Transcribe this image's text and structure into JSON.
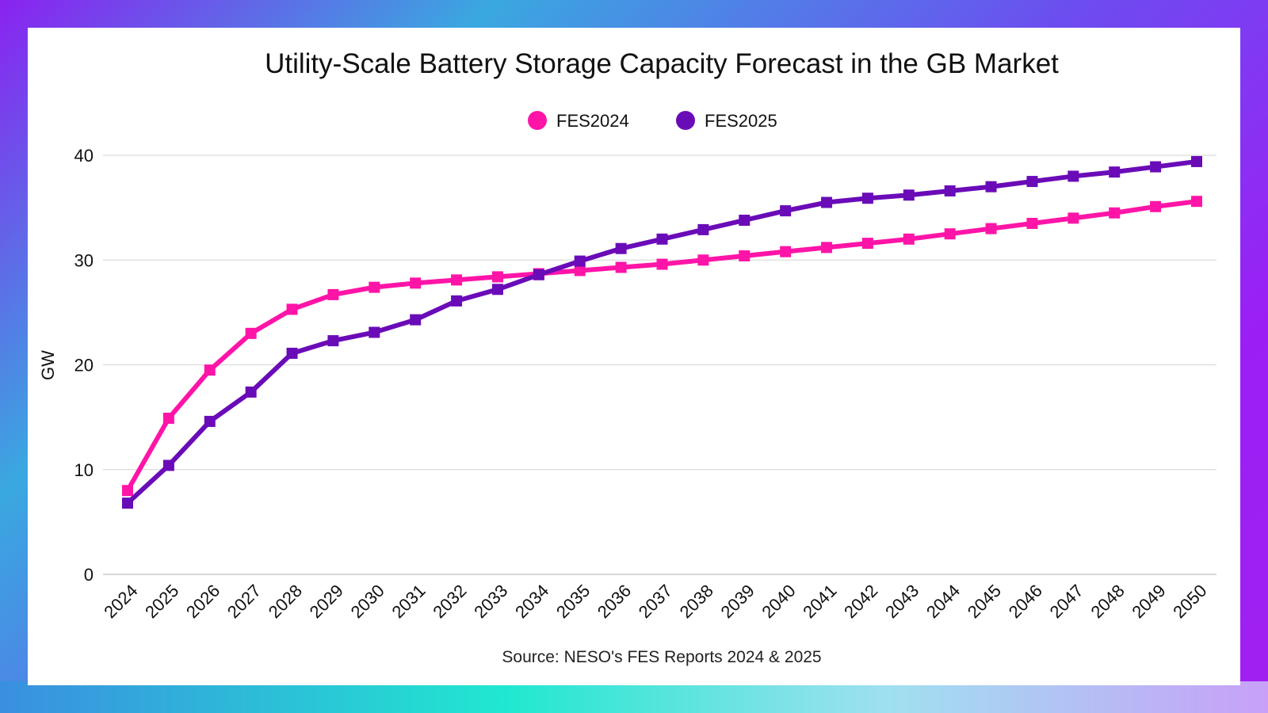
{
  "chart_data": {
    "type": "line",
    "title": "Utility-Scale Battery Storage Capacity Forecast in the GB Market",
    "xlabel": "",
    "ylabel": "GW",
    "source": "Source: NESO's FES Reports 2024 & 2025",
    "x": [
      2024,
      2025,
      2026,
      2027,
      2028,
      2029,
      2030,
      2031,
      2032,
      2033,
      2034,
      2035,
      2036,
      2037,
      2038,
      2039,
      2040,
      2041,
      2042,
      2043,
      2044,
      2045,
      2046,
      2047,
      2048,
      2049,
      2050
    ],
    "ylim": [
      0,
      40
    ],
    "yticks": [
      0,
      10,
      20,
      30,
      40
    ],
    "grid": true,
    "legend_position": "top-center",
    "series": [
      {
        "name": "FES2024",
        "color": "#ff14a8",
        "values": [
          8.0,
          14.9,
          19.5,
          23.0,
          25.3,
          26.7,
          27.4,
          27.8,
          28.1,
          28.4,
          28.7,
          29.0,
          29.3,
          29.6,
          30.0,
          30.4,
          30.8,
          31.2,
          31.6,
          32.0,
          32.5,
          33.0,
          33.5,
          34.0,
          34.5,
          35.1,
          35.6
        ]
      },
      {
        "name": "FES2025",
        "color": "#6a0bb8",
        "values": [
          6.8,
          10.4,
          14.6,
          17.4,
          21.1,
          22.3,
          23.1,
          24.3,
          26.1,
          27.2,
          28.6,
          29.9,
          31.1,
          32.0,
          32.9,
          33.8,
          34.7,
          35.5,
          35.9,
          36.2,
          36.6,
          37.0,
          37.5,
          38.0,
          38.4,
          38.9,
          39.4
        ]
      }
    ]
  }
}
